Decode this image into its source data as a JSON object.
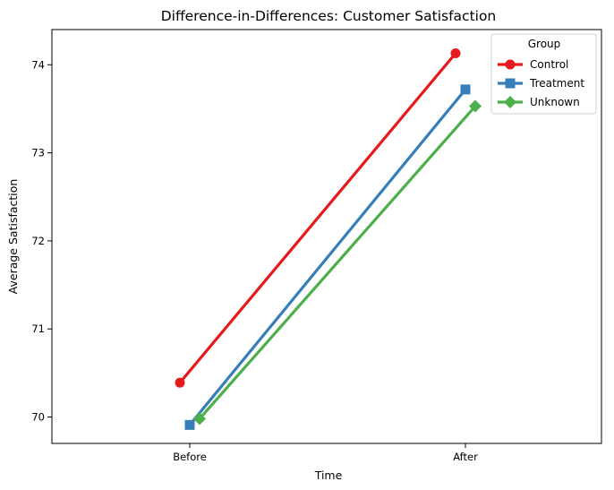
{
  "chart_data": {
    "type": "line",
    "title": "Difference-in-Differences: Customer Satisfaction",
    "xlabel": "Time",
    "ylabel": "Average Satisfaction",
    "categories": [
      "Before",
      "After"
    ],
    "y_ticks": [
      70,
      71,
      72,
      73,
      74
    ],
    "ylim": [
      69.7,
      74.4
    ],
    "grid": false,
    "legend": {
      "title": "Group",
      "placement": "top-right"
    },
    "series": [
      {
        "name": "Control",
        "values": [
          70.39,
          74.13
        ],
        "color": "#e41a1c",
        "marker": "circle"
      },
      {
        "name": "Treatment",
        "values": [
          69.91,
          73.72
        ],
        "color": "#377eb8",
        "marker": "square"
      },
      {
        "name": "Unknown",
        "values": [
          69.98,
          73.53
        ],
        "color": "#4daf4a",
        "marker": "diamond"
      }
    ]
  }
}
